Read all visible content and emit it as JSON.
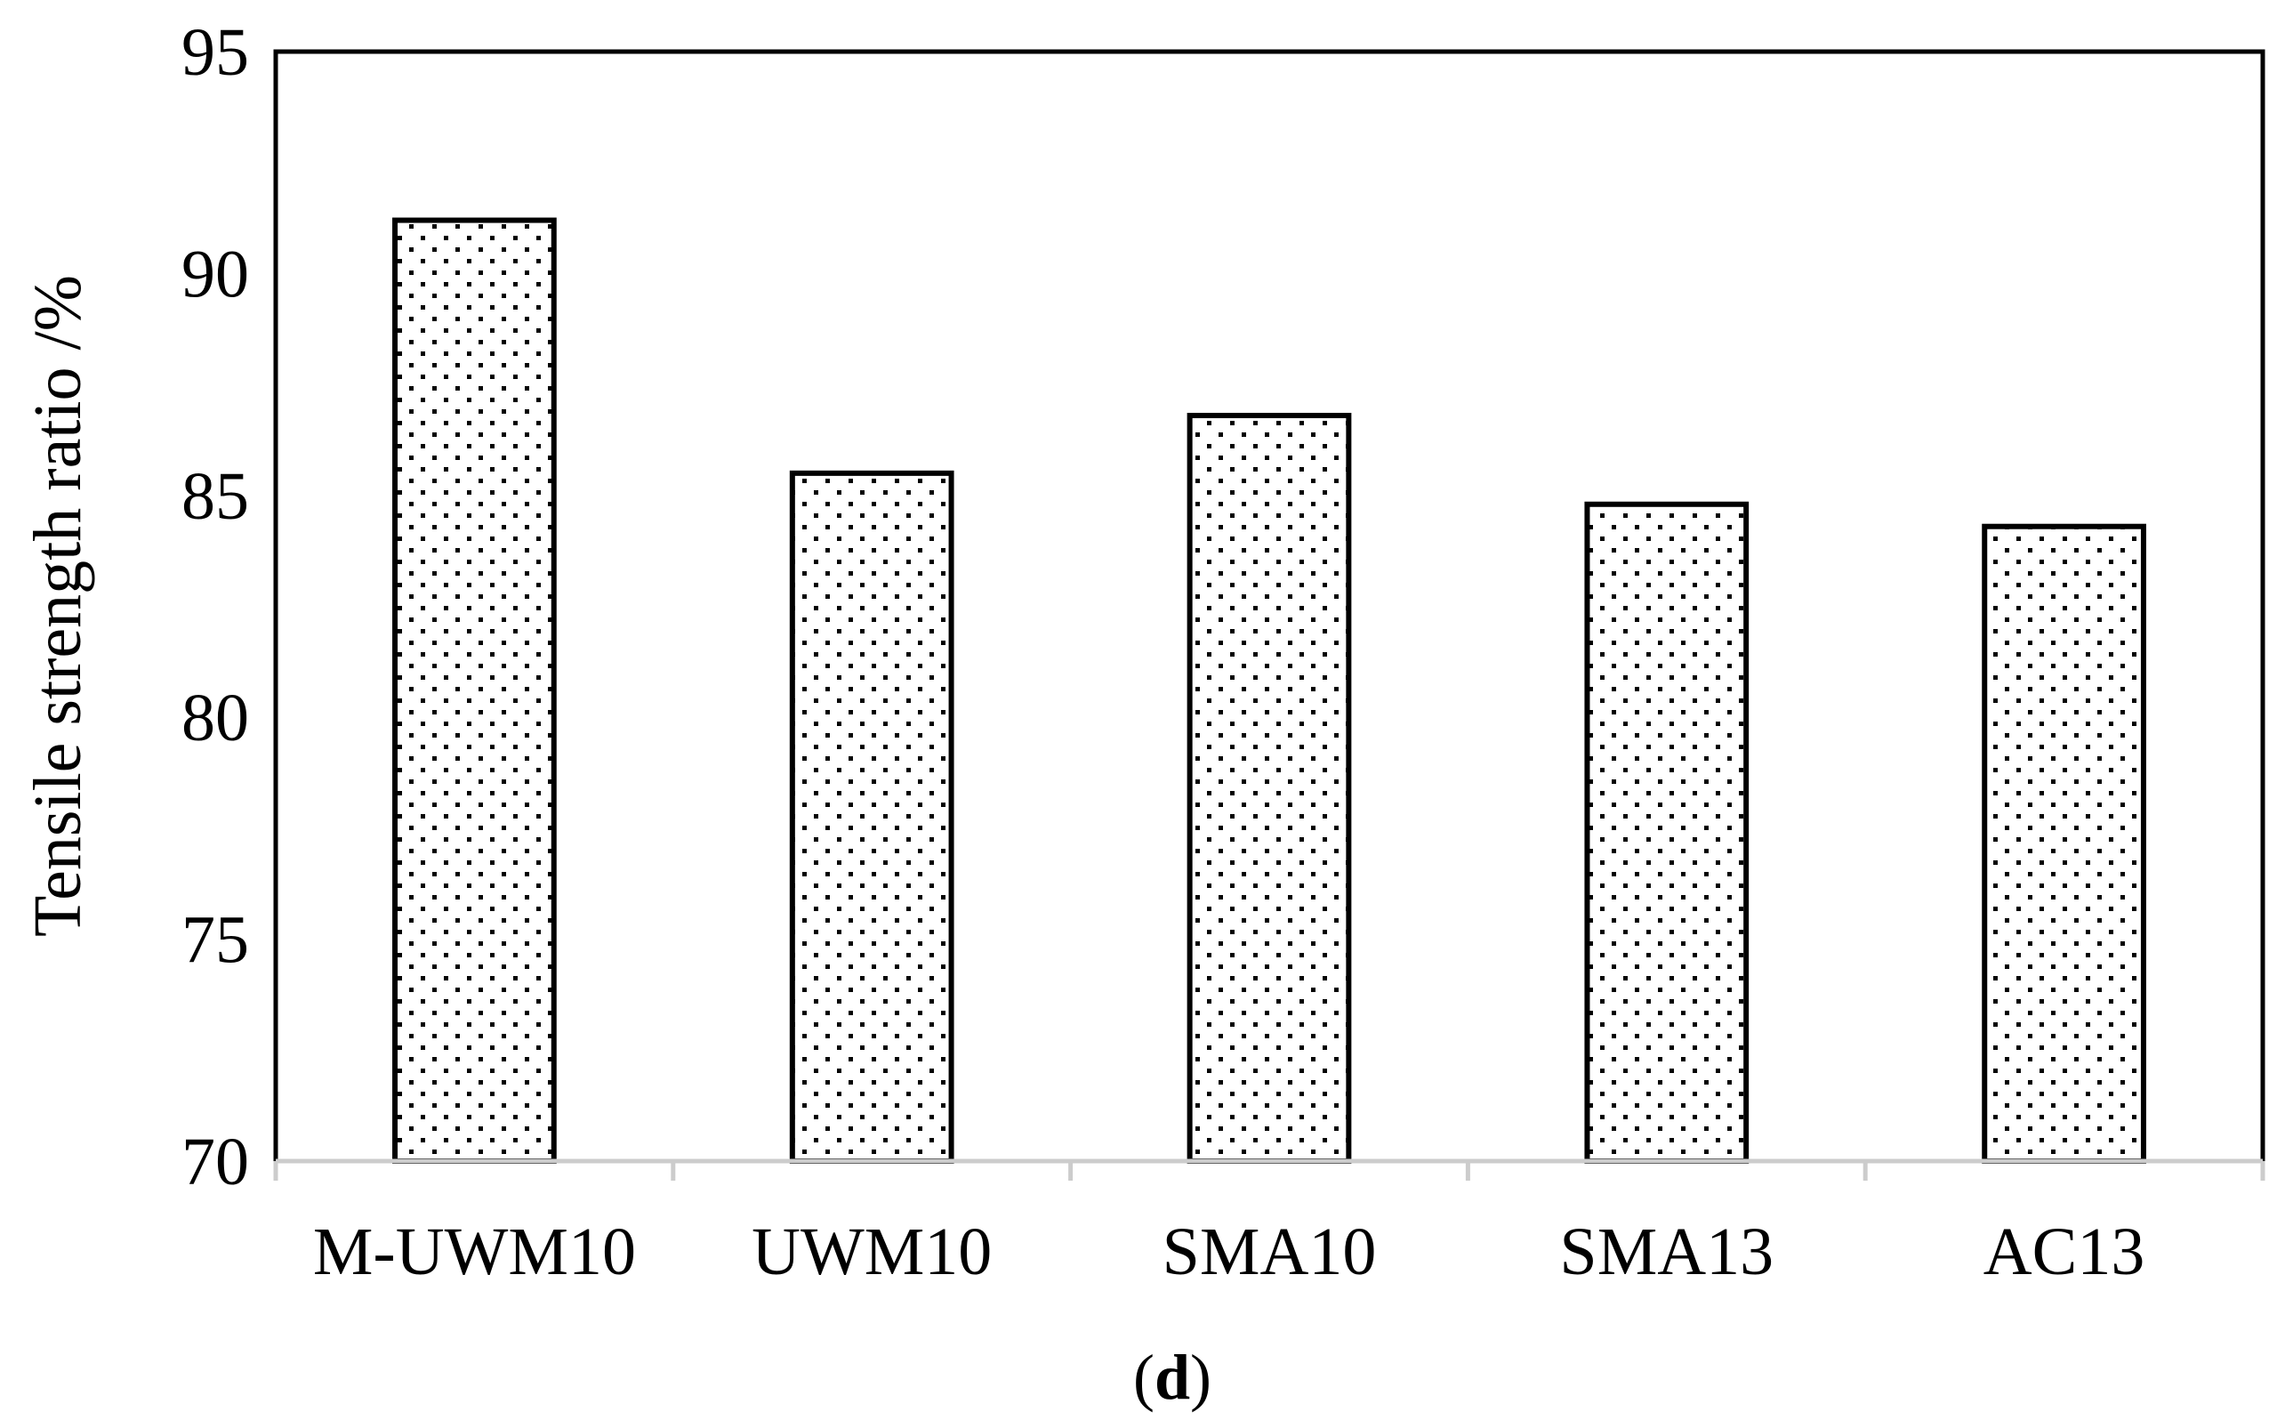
{
  "chart_data": {
    "type": "bar",
    "categories": [
      "M-UWM10",
      "UWM10",
      "SMA10",
      "SMA13",
      "AC13"
    ],
    "values": [
      91.2,
      85.5,
      86.8,
      84.8,
      84.3
    ],
    "xlabel": "",
    "ylabel": "Tensile strength ratio /%",
    "ylim": [
      70,
      95
    ],
    "yticks": [
      70,
      75,
      80,
      85,
      90,
      95
    ],
    "grid": false,
    "legend": "none",
    "bar_fill": "dotted pattern",
    "caption_paren_open": "(",
    "caption_letter": "d",
    "caption_paren_close": ")"
  }
}
